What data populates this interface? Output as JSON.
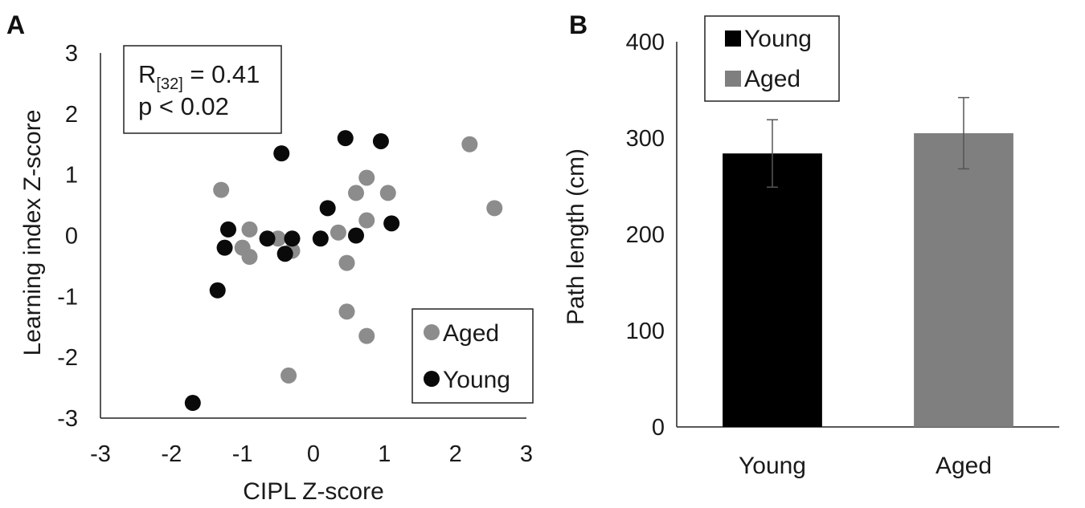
{
  "panels": {
    "a_label": "A",
    "b_label": "B"
  },
  "chart_data": [
    {
      "panel": "A",
      "type": "scatter",
      "xlabel": "CIPL Z-score",
      "ylabel": "Learning index Z-score",
      "xlim": [
        -3,
        3
      ],
      "ylim": [
        -3,
        3
      ],
      "xticks": [
        "-3",
        "-2",
        "-1",
        "0",
        "1",
        "2",
        "3"
      ],
      "yticks": [
        "-3",
        "-2",
        "-1",
        "0",
        "1",
        "2",
        "3"
      ],
      "grid": false,
      "annotation": {
        "r_prefix": "R",
        "r_sub": "[32]",
        "r_suffix": " = 0.41",
        "p_text": "p < 0.02"
      },
      "legend": {
        "position": "bottom-right"
      },
      "series": [
        {
          "name": "Aged",
          "color": "#8c8c8c",
          "points": [
            [
              -1.3,
              0.75
            ],
            [
              -1.0,
              -0.2
            ],
            [
              -0.9,
              0.1
            ],
            [
              -0.9,
              -0.35
            ],
            [
              -0.5,
              -0.05
            ],
            [
              -0.3,
              -0.25
            ],
            [
              -0.35,
              -2.3
            ],
            [
              0.35,
              0.05
            ],
            [
              0.47,
              -0.45
            ],
            [
              0.47,
              -1.25
            ],
            [
              0.6,
              0.7
            ],
            [
              0.75,
              0.95
            ],
            [
              0.75,
              0.25
            ],
            [
              0.75,
              -1.65
            ],
            [
              1.05,
              0.7
            ],
            [
              2.2,
              1.5
            ],
            [
              2.55,
              0.45
            ]
          ]
        },
        {
          "name": "Young",
          "color": "#0a0a0a",
          "points": [
            [
              -1.7,
              -2.75
            ],
            [
              -1.35,
              -0.9
            ],
            [
              -1.25,
              -0.2
            ],
            [
              -1.2,
              0.1
            ],
            [
              -0.65,
              -0.05
            ],
            [
              -0.45,
              1.35
            ],
            [
              -0.4,
              -0.3
            ],
            [
              -0.3,
              -0.05
            ],
            [
              0.1,
              -0.05
            ],
            [
              0.2,
              0.45
            ],
            [
              0.45,
              1.6
            ],
            [
              0.6,
              0.0
            ],
            [
              0.95,
              1.55
            ],
            [
              1.1,
              0.2
            ]
          ]
        }
      ]
    },
    {
      "panel": "B",
      "type": "bar",
      "categories": [
        "Young",
        "Aged"
      ],
      "values": [
        284,
        305
      ],
      "errors": [
        35,
        37
      ],
      "colors": [
        "#000000",
        "#7f7f7f"
      ],
      "ylabel": "Path length (cm)",
      "xlabel": "",
      "ylim": [
        0,
        400
      ],
      "yticks": [
        "0",
        "100",
        "200",
        "300",
        "400"
      ],
      "grid": false,
      "legend": {
        "position": "top-left",
        "entries": [
          {
            "name": "Young",
            "color": "#000000"
          },
          {
            "name": "Aged",
            "color": "#7f7f7f"
          }
        ]
      }
    }
  ]
}
